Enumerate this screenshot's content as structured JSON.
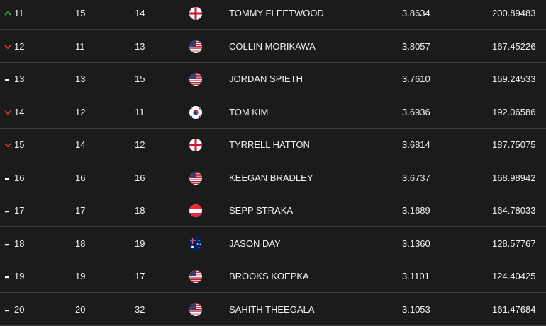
{
  "colors": {
    "background": "#1b1b1b",
    "row_divider": "#3c3c3c",
    "text": "#f1f1f1",
    "up": "#3fae49",
    "down": "#e23b3b",
    "same": "#ffffff"
  },
  "rows": [
    {
      "move": "up",
      "move_icon": "arrow-up-icon",
      "rank": "11",
      "last_week": "15",
      "year_end": "14",
      "flag": "flag-england",
      "name": "TOMMY FLEETWOOD",
      "avg_points": "3.8634",
      "total_points": "200.89483"
    },
    {
      "move": "down",
      "move_icon": "arrow-down-icon",
      "rank": "12",
      "last_week": "11",
      "year_end": "13",
      "flag": "flag-usa",
      "name": "COLLIN MORIKAWA",
      "avg_points": "3.8057",
      "total_points": "167.45226"
    },
    {
      "move": "same",
      "move_icon": "dash-icon",
      "rank": "13",
      "last_week": "13",
      "year_end": "15",
      "flag": "flag-usa",
      "name": "JORDAN SPIETH",
      "avg_points": "3.7610",
      "total_points": "169.24533"
    },
    {
      "move": "down",
      "move_icon": "arrow-down-icon",
      "rank": "14",
      "last_week": "12",
      "year_end": "11",
      "flag": "flag-south-korea",
      "name": "TOM KIM",
      "avg_points": "3.6936",
      "total_points": "192.06586"
    },
    {
      "move": "down",
      "move_icon": "arrow-down-icon",
      "rank": "15",
      "last_week": "14",
      "year_end": "12",
      "flag": "flag-england",
      "name": "TYRRELL HATTON",
      "avg_points": "3.6814",
      "total_points": "187.75075"
    },
    {
      "move": "same",
      "move_icon": "dash-icon",
      "rank": "16",
      "last_week": "16",
      "year_end": "16",
      "flag": "flag-usa",
      "name": "KEEGAN BRADLEY",
      "avg_points": "3.6737",
      "total_points": "168.98942"
    },
    {
      "move": "same",
      "move_icon": "dash-icon",
      "rank": "17",
      "last_week": "17",
      "year_end": "18",
      "flag": "flag-austria",
      "name": "SEPP STRAKA",
      "avg_points": "3.1689",
      "total_points": "164.78033"
    },
    {
      "move": "same",
      "move_icon": "dash-icon",
      "rank": "18",
      "last_week": "18",
      "year_end": "19",
      "flag": "flag-australia",
      "name": "JASON DAY",
      "avg_points": "3.1360",
      "total_points": "128.57767"
    },
    {
      "move": "same",
      "move_icon": "dash-icon",
      "rank": "19",
      "last_week": "19",
      "year_end": "17",
      "flag": "flag-usa",
      "name": "BROOKS KOEPKA",
      "avg_points": "3.1101",
      "total_points": "124.40425"
    },
    {
      "move": "same",
      "move_icon": "dash-icon",
      "rank": "20",
      "last_week": "20",
      "year_end": "32",
      "flag": "flag-usa",
      "name": "SAHITH THEEGALA",
      "avg_points": "3.1053",
      "total_points": "161.47684"
    }
  ]
}
